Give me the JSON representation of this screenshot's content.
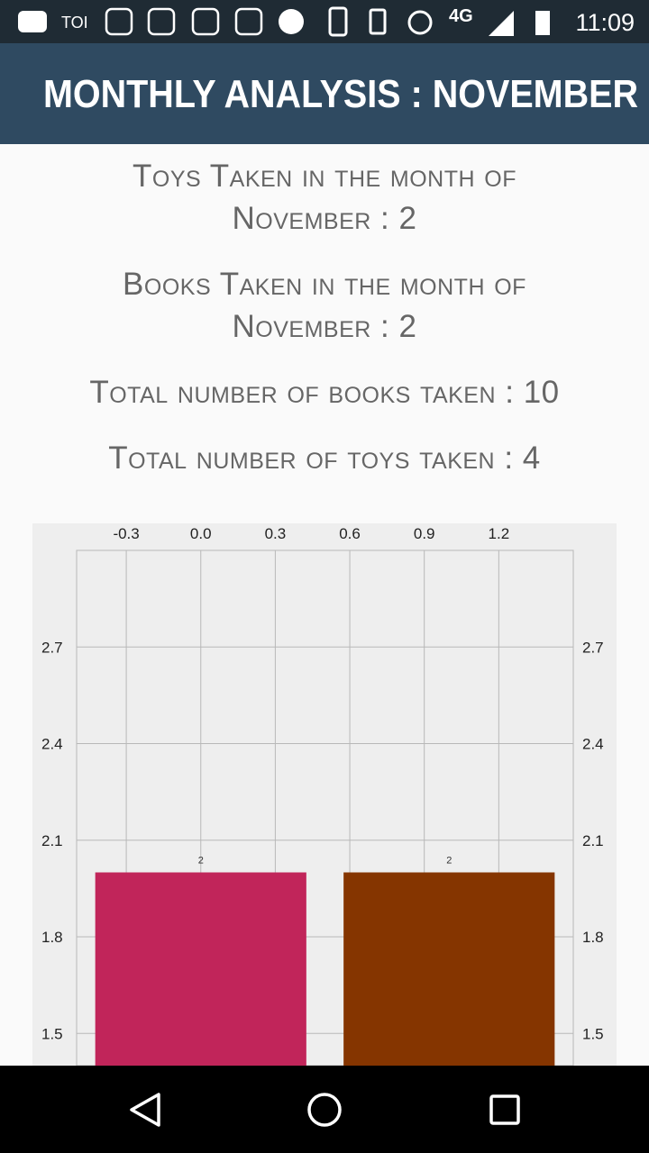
{
  "status_bar": {
    "carrier": "TOI",
    "network": "4G",
    "time": "11:09"
  },
  "app_bar": {
    "title": "MONTHLY ANALYSIS : NOVEMBER"
  },
  "stats": [
    "Toys Taken in the month of November : 2",
    "Books Taken in the month of November : 2",
    "Total number of books taken : 10",
    "Total number of toys taken : 4"
  ],
  "chart_data": {
    "type": "bar",
    "x": [
      0,
      1
    ],
    "values": [
      2,
      2
    ],
    "colors": [
      "#c1255a",
      "#853500"
    ],
    "xlim": [
      -0.5,
      1.5
    ],
    "xticks": [
      -0.3,
      {
        "value": 0,
        "label": "0.0"
      },
      0.3,
      0.6,
      0.9,
      1.2
    ],
    "x_axis_position": "top",
    "ylim": [
      1.4,
      3.0
    ],
    "yticks": [
      1.5,
      1.8,
      2.1,
      2.4,
      2.7
    ],
    "y2lim": [
      1.4,
      3.0
    ],
    "y2ticks": [
      1.5,
      1.8,
      2.1,
      2.4,
      2.7
    ],
    "grid": true
  }
}
